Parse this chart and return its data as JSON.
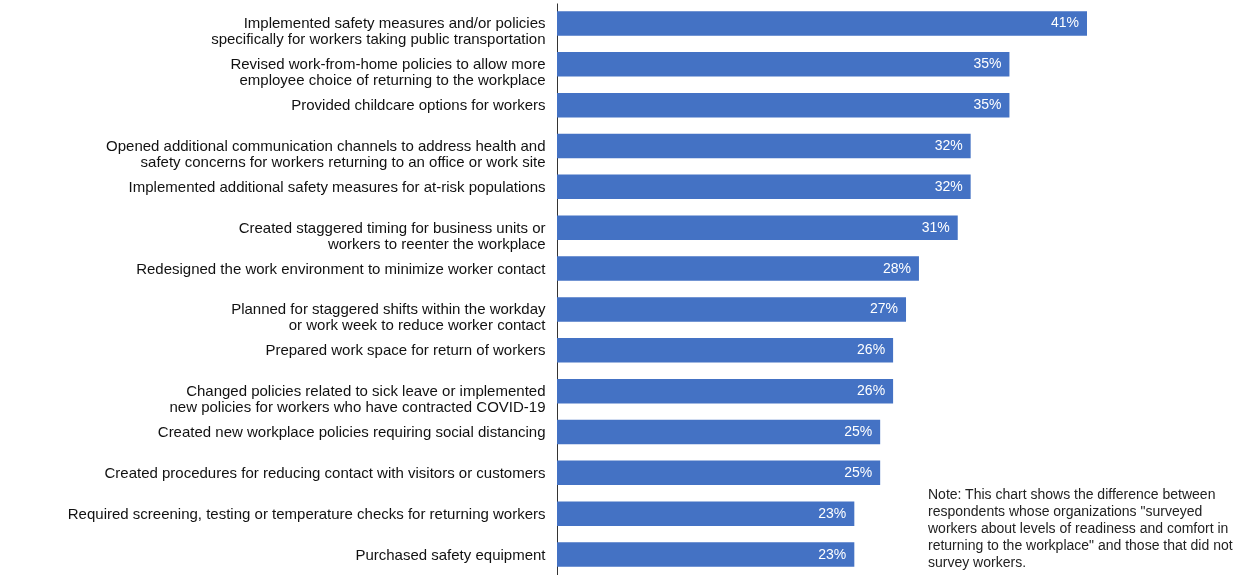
{
  "chart_data": {
    "type": "bar",
    "orientation": "horizontal",
    "value_labels": [
      "41%",
      "35%",
      "35%",
      "32%",
      "32%",
      "31%",
      "28%",
      "27%",
      "26%",
      "26%",
      "25%",
      "25%",
      "23%",
      "23%"
    ],
    "color": "#4472c4",
    "categories": [
      "Implemented safety measures and/or policies\nspecifically for workers taking public transportation",
      "Revised work-from-home policies to allow more\nemployee choice of returning to the workplace",
      "Provided childcare options for workers",
      "Opened additional communication channels to address health and\nsafety concerns for workers returning to an office or work site",
      "Implemented additional safety measures for at-risk populations",
      "Created staggered timing for business units or\nworkers to reenter the workplace",
      "Redesigned the work environment to minimize worker contact",
      "Planned for staggered shifts within the workday\nor work week to reduce worker contact",
      "Prepared work space for return of workers",
      "Changed policies related to sick leave or implemented\nnew policies for workers who have contracted COVID-19",
      "Created new workplace policies requiring social distancing",
      "Created procedures for reducing contact with visitors or customers",
      "Required screening, testing or temperature checks for returning workers",
      "Purchased safety equipment"
    ],
    "values": [
      41,
      35,
      35,
      32,
      32,
      31,
      28,
      27,
      26,
      26,
      25,
      25,
      23,
      23
    ],
    "annotations": [
      "Note: This chart shows the difference between respondents whose organizations \"surveyed workers about levels of readiness and comfort in returning to the workplace\" and those that did not survey workers."
    ]
  }
}
